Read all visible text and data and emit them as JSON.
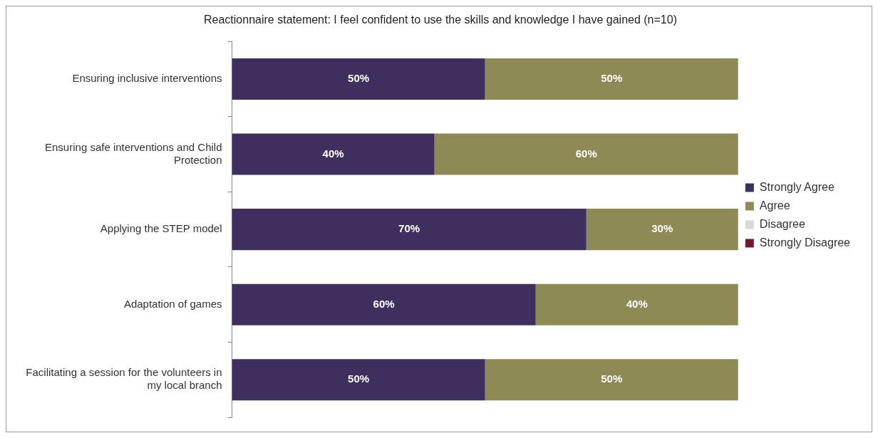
{
  "chart_data": {
    "type": "bar",
    "orientation": "horizontal",
    "stacked": true,
    "title": "Reactionnaire statement: I feel confident to use the skills and knowledge I have gained (n=10)",
    "categories": [
      "Ensuring inclusive interventions",
      "Ensuring safe interventions and Child Protection",
      "Applying the STEP model",
      "Adaptation of games",
      "Facilitating a session for the volunteers in my local branch"
    ],
    "series": [
      {
        "name": "Strongly Agree",
        "color": "#3f2f5e",
        "values": [
          50,
          40,
          70,
          60,
          50
        ],
        "value_labels": [
          "50%",
          "40%",
          "70%",
          "60%",
          "50%"
        ]
      },
      {
        "name": "Agree",
        "color": "#8e8a55",
        "values": [
          50,
          60,
          30,
          40,
          50
        ],
        "value_labels": [
          "50%",
          "60%",
          "30%",
          "40%",
          "50%"
        ]
      },
      {
        "name": "Disagree",
        "color": "#d9d9d9",
        "values": [
          null,
          null,
          null,
          null,
          null
        ]
      },
      {
        "name": "Strongly Disagree",
        "color": "#6b1f2e",
        "values": [
          null,
          null,
          null,
          null,
          null
        ]
      }
    ],
    "xlim": [
      0,
      100
    ],
    "tick_labels": "y",
    "legend": "right"
  }
}
